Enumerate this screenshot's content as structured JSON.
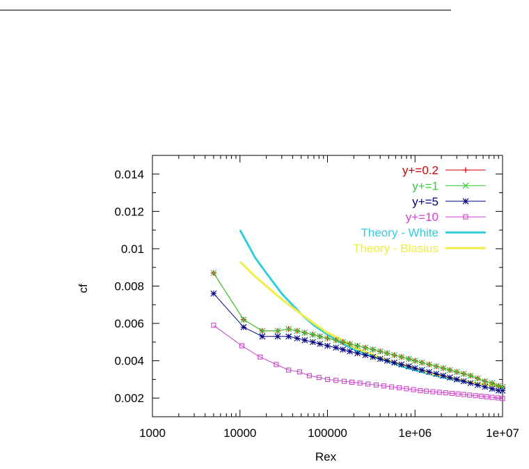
{
  "chart_data": {
    "type": "line",
    "xlabel": "Rex",
    "ylabel": "cf",
    "xscale": "log",
    "xlim": [
      1000,
      10000000
    ],
    "ylim": [
      0.001,
      0.015
    ],
    "xticks": [
      "1000",
      "10000",
      "100000",
      "1e+06",
      "1e+07"
    ],
    "yticks": [
      "0.002",
      "0.004",
      "0.006",
      "0.008",
      "0.01",
      "0.012",
      "0.014"
    ],
    "grid": false,
    "legend_position": "top-right",
    "series": [
      {
        "name": "y+=0.2",
        "color": "#cc0000",
        "marker": "plus",
        "line_width": 1,
        "x": [
          5000,
          11000,
          18000,
          27000,
          36000,
          45000,
          55000,
          68000,
          82000,
          100000,
          125000,
          150000,
          180000,
          220000,
          270000,
          330000,
          400000,
          480000,
          580000,
          700000,
          850000,
          1000000,
          1200000,
          1450000,
          1750000,
          2100000,
          2500000,
          3000000,
          3600000,
          4300000,
          5200000,
          6300000,
          7600000,
          9000000,
          10000000
        ],
        "y": [
          0.0087,
          0.0062,
          0.0056,
          0.0056,
          0.0057,
          0.0056,
          0.0055,
          0.0054,
          0.0053,
          0.0052,
          0.0051,
          0.005,
          0.0049,
          0.0048,
          0.0047,
          0.0046,
          0.0045,
          0.0044,
          0.0043,
          0.0042,
          0.0041,
          0.004,
          0.0039,
          0.0038,
          0.0037,
          0.0036,
          0.0035,
          0.0034,
          0.0033,
          0.0032,
          0.00305,
          0.0029,
          0.0028,
          0.00265,
          0.0026
        ]
      },
      {
        "name": "y+=1",
        "color": "#33cc33",
        "marker": "cross",
        "line_width": 1,
        "x": [
          5000,
          11000,
          18000,
          27000,
          36000,
          45000,
          55000,
          68000,
          82000,
          100000,
          125000,
          150000,
          180000,
          220000,
          270000,
          330000,
          400000,
          480000,
          580000,
          700000,
          850000,
          1000000,
          1200000,
          1450000,
          1750000,
          2100000,
          2500000,
          3000000,
          3600000,
          4300000,
          5200000,
          6300000,
          7600000,
          9000000,
          10000000
        ],
        "y": [
          0.0087,
          0.0062,
          0.0056,
          0.0056,
          0.0057,
          0.0056,
          0.0055,
          0.0054,
          0.0053,
          0.0052,
          0.0051,
          0.005,
          0.0049,
          0.0048,
          0.0047,
          0.0046,
          0.0045,
          0.0044,
          0.0043,
          0.0042,
          0.0041,
          0.004,
          0.0039,
          0.0038,
          0.0037,
          0.0036,
          0.0035,
          0.0034,
          0.0033,
          0.0032,
          0.00305,
          0.0029,
          0.0028,
          0.00265,
          0.0026
        ]
      },
      {
        "name": "y+=5",
        "color": "#000080",
        "marker": "star",
        "line_width": 1,
        "x": [
          5000,
          11000,
          18000,
          27000,
          36000,
          45000,
          55000,
          68000,
          82000,
          100000,
          125000,
          150000,
          180000,
          220000,
          270000,
          330000,
          400000,
          480000,
          580000,
          700000,
          850000,
          1000000,
          1200000,
          1450000,
          1750000,
          2100000,
          2500000,
          3000000,
          3600000,
          4300000,
          5200000,
          6300000,
          7600000,
          9000000,
          10000000
        ],
        "y": [
          0.0076,
          0.0058,
          0.0053,
          0.0053,
          0.0053,
          0.0052,
          0.0051,
          0.005,
          0.0049,
          0.0048,
          0.0047,
          0.0046,
          0.0045,
          0.0044,
          0.0043,
          0.0042,
          0.0041,
          0.004,
          0.0039,
          0.0038,
          0.0037,
          0.0036,
          0.0035,
          0.0034,
          0.0033,
          0.0032,
          0.0031,
          0.003,
          0.0029,
          0.0028,
          0.0027,
          0.0026,
          0.0025,
          0.0024,
          0.0024
        ]
      },
      {
        "name": "y+=10",
        "color": "#cc44cc",
        "marker": "square",
        "line_width": 1,
        "x": [
          5000,
          10500,
          17000,
          26000,
          36000,
          48000,
          62000,
          80000,
          100000,
          125000,
          155000,
          190000,
          235000,
          290000,
          360000,
          440000,
          540000,
          660000,
          800000,
          960000,
          1150000,
          1350000,
          1600000,
          1900000,
          2250000,
          2650000,
          3100000,
          3600000,
          4200000,
          4900000,
          5700000,
          6600000,
          7600000,
          8800000,
          10000000
        ],
        "y": [
          0.0059,
          0.0048,
          0.0042,
          0.0038,
          0.0035,
          0.0034,
          0.0032,
          0.0031,
          0.003,
          0.00295,
          0.0029,
          0.00285,
          0.0028,
          0.00275,
          0.0027,
          0.00265,
          0.0026,
          0.00255,
          0.0025,
          0.00245,
          0.0024,
          0.00237,
          0.00234,
          0.00231,
          0.00228,
          0.00225,
          0.00222,
          0.00219,
          0.00216,
          0.00213,
          0.0021,
          0.00207,
          0.00204,
          0.00201,
          0.00198
        ]
      },
      {
        "name": "Theory - White",
        "color": "#33ccdd",
        "marker": "none",
        "line_width": 3,
        "x": [
          10000,
          15000,
          20000,
          30000,
          50000,
          70000,
          100000,
          150000,
          200000,
          300000,
          500000,
          700000,
          1000000,
          1500000,
          2000000,
          3000000,
          5000000,
          7000000,
          10000000
        ],
        "y": [
          0.011,
          0.0095,
          0.0087,
          0.0076,
          0.0065,
          0.0059,
          0.0054,
          0.0049,
          0.0046,
          0.0043,
          0.00395,
          0.0037,
          0.0035,
          0.00327,
          0.00312,
          0.00295,
          0.0028,
          0.0027,
          0.00262
        ]
      },
      {
        "name": "Theory - Blasius",
        "color": "#eeee44",
        "marker": "none",
        "line_width": 3,
        "x": [
          10000,
          15000,
          20000,
          30000,
          50000,
          70000,
          100000,
          150000,
          200000,
          300000,
          500000,
          700000,
          1000000,
          1500000,
          2000000,
          3000000,
          5000000,
          7000000,
          10000000
        ],
        "y": [
          0.0093,
          0.0085,
          0.008,
          0.0073,
          0.0065,
          0.006,
          0.0055,
          0.0051,
          0.0047,
          0.0044,
          0.004,
          0.0038,
          0.0036,
          0.0033,
          0.0032,
          0.003,
          0.0028,
          0.0027,
          0.0026
        ]
      }
    ]
  }
}
